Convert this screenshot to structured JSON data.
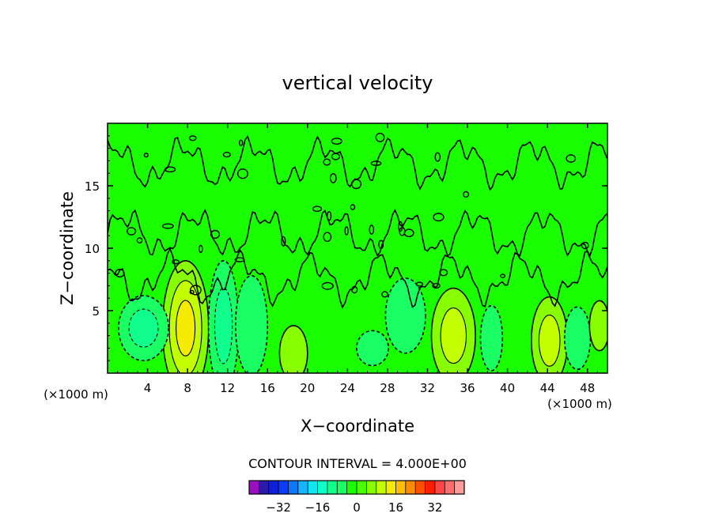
{
  "chart_data": {
    "type": "heatmap",
    "title": "vertical velocity",
    "xlabel": "X−coordinate",
    "ylabel": "Z−coordinate",
    "x_unit_label": "(×1000 m)",
    "x_unit_label_right": "(×1000 m)",
    "xlim": [
      0,
      50
    ],
    "ylim": [
      0,
      20
    ],
    "x_ticks": [
      4,
      8,
      12,
      16,
      20,
      24,
      28,
      32,
      36,
      40,
      44,
      48
    ],
    "x_tick_labels": [
      "4",
      "8",
      "12",
      "16",
      "20",
      "24",
      "28",
      "32",
      "36",
      "40",
      "44",
      "48"
    ],
    "y_ticks": [
      5,
      10,
      15
    ],
    "y_tick_labels": [
      "5",
      "10",
      "15"
    ],
    "background_color": "#19ff00",
    "features": [
      {
        "x": 7.8,
        "z": 3.6,
        "rx": 2.3,
        "rz": 5.4,
        "value": 12
      },
      {
        "x": 11.6,
        "z": 3.8,
        "rx": 1.5,
        "rz": 5.2,
        "value": -8
      },
      {
        "x": 14.4,
        "z": 3.8,
        "rx": 1.6,
        "rz": 4.0,
        "value": -4
      },
      {
        "x": 18.6,
        "z": 1.6,
        "rx": 1.4,
        "rz": 2.2,
        "value": 4
      },
      {
        "x": 3.6,
        "z": 3.6,
        "rx": 2.5,
        "rz": 2.6,
        "value": -8
      },
      {
        "x": 26.5,
        "z": 2.0,
        "rx": 1.6,
        "rz": 1.4,
        "value": -4
      },
      {
        "x": 29.8,
        "z": 4.6,
        "rx": 2.0,
        "rz": 3.0,
        "value": -4
      },
      {
        "x": 34.6,
        "z": 3.0,
        "rx": 2.2,
        "rz": 3.8,
        "value": 8
      },
      {
        "x": 38.4,
        "z": 2.8,
        "rx": 1.1,
        "rz": 2.6,
        "value": -4
      },
      {
        "x": 44.2,
        "z": 2.6,
        "rx": 1.8,
        "rz": 3.5,
        "value": 8
      },
      {
        "x": 47.0,
        "z": 2.8,
        "rx": 1.3,
        "rz": 2.5,
        "value": -4
      },
      {
        "x": 49.2,
        "z": 3.8,
        "rx": 1.0,
        "rz": 2.0,
        "value": 4
      }
    ],
    "contour_interval_text": "CONTOUR INTERVAL = 4.000E+00",
    "colorbar": {
      "colors": [
        "#9a0fbf",
        "#2a1aa8",
        "#1020d8",
        "#0a3cff",
        "#0a78ff",
        "#14b4ff",
        "#10e6ee",
        "#10ffc8",
        "#10ff8c",
        "#19ff64",
        "#19ff00",
        "#4bff00",
        "#87ff00",
        "#c3ff00",
        "#f5eb00",
        "#ffbe00",
        "#ff8c00",
        "#ff5000",
        "#ff1e00",
        "#ff4646",
        "#ff6e6e",
        "#ff9b9b"
      ],
      "tick_labels": [
        "−32",
        "−16",
        "0",
        "16",
        "32"
      ],
      "tick_values": [
        -32,
        -16,
        0,
        16,
        32
      ],
      "min": -44,
      "max": 44
    }
  }
}
